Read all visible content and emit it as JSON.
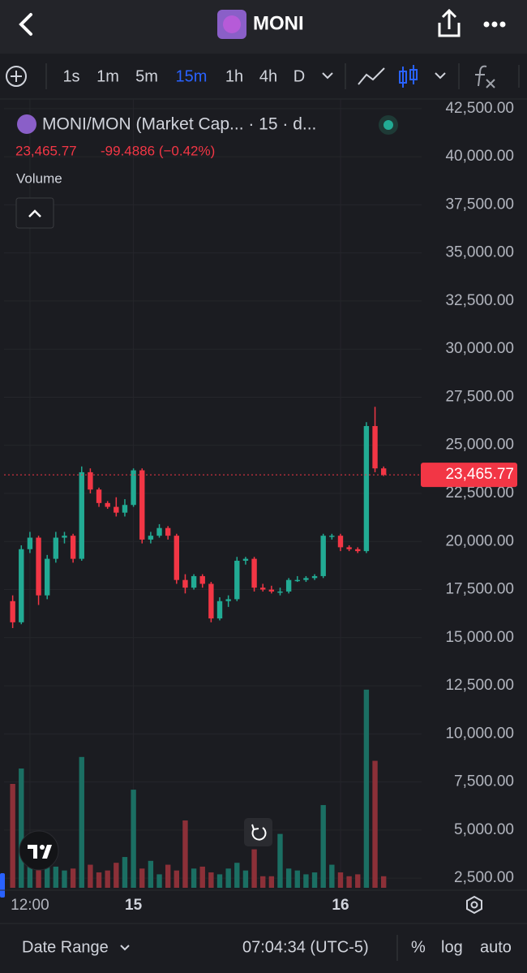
{
  "header": {
    "title": "MONI"
  },
  "toolbar": {
    "intervals": [
      "1s",
      "1m",
      "5m",
      "15m",
      "1h",
      "4h",
      "D"
    ],
    "active_interval": 3
  },
  "legend": {
    "symbol": "MONI/MON (Market Cap... · 15 · d...",
    "change": "-99.4886 (−0.42%)",
    "volume_label": "Volume"
  },
  "chart_data": {
    "type": "candlestick",
    "x": [
      10,
      11,
      12,
      13,
      14,
      15,
      16,
      17,
      18,
      19,
      20,
      21,
      22,
      23,
      24,
      25,
      26,
      27,
      28,
      29,
      30,
      31,
      32,
      33,
      34,
      35,
      36,
      37,
      38,
      39,
      40,
      41,
      42,
      43,
      44,
      45,
      46,
      47,
      48,
      49,
      50,
      51,
      52,
      53
    ],
    "open": [
      16900,
      15800,
      19600,
      20200,
      17200,
      19100,
      20200,
      20300,
      19100,
      23600,
      22700,
      22000,
      21800,
      21500,
      21900,
      23700,
      20100,
      20300,
      20700,
      20300,
      18000,
      17600,
      18200,
      17800,
      16000,
      16900,
      17000,
      19000,
      19100,
      17600,
      17500,
      17400,
      17400,
      18000,
      18000,
      18100,
      18200,
      20300,
      20300,
      19700,
      19600,
      19500,
      26000,
      23800
    ],
    "high": [
      17200,
      19800,
      20500,
      20300,
      19300,
      20500,
      20500,
      20400,
      23900,
      23800,
      22800,
      22100,
      22300,
      22200,
      23800,
      23800,
      20500,
      20900,
      20800,
      20400,
      18300,
      18300,
      18300,
      17900,
      17100,
      17200,
      19200,
      19200,
      19200,
      17800,
      17700,
      17600,
      18100,
      18200,
      18200,
      18300,
      20400,
      20400,
      20400,
      19800,
      19700,
      26200,
      27000,
      23900
    ],
    "low": [
      15500,
      15700,
      19400,
      16700,
      17000,
      18900,
      19900,
      18900,
      19000,
      22500,
      21800,
      21700,
      21300,
      21300,
      21800,
      19900,
      19900,
      20200,
      20100,
      17800,
      17300,
      17500,
      17600,
      15800,
      15900,
      16600,
      16900,
      18800,
      17400,
      17400,
      17300,
      17200,
      17300,
      17900,
      17900,
      18000,
      18100,
      20100,
      19500,
      19500,
      19400,
      19400,
      23600,
      23400
    ],
    "close": [
      15800,
      19600,
      20200,
      17200,
      19100,
      20200,
      20300,
      19100,
      23600,
      22700,
      22000,
      21800,
      21500,
      21900,
      23700,
      20100,
      20300,
      20700,
      20300,
      18000,
      17600,
      18200,
      17800,
      16000,
      16900,
      17000,
      19000,
      19100,
      17600,
      17500,
      17400,
      17400,
      18000,
      18000,
      18100,
      18200,
      20300,
      20300,
      19700,
      19600,
      19500,
      26000,
      23800,
      23465.77
    ],
    "volume": [
      7400,
      8200,
      3400,
      4800,
      3600,
      3100,
      2900,
      3000,
      8800,
      3200,
      2800,
      2900,
      3300,
      3600,
      7100,
      3000,
      3400,
      2700,
      3200,
      2900,
      5500,
      3000,
      3100,
      2800,
      2700,
      3000,
      3300,
      2900,
      4000,
      2600,
      2600,
      4800,
      3000,
      2900,
      2700,
      2800,
      6300,
      3200,
      2800,
      2600,
      2700,
      12300,
      8600,
      2600
    ],
    "up_color": "#22ab94",
    "down_color": "#f23645",
    "volume_up_color": "#1b6f63",
    "volume_down_color": "#8c3038",
    "ylim": [
      2000,
      43000
    ],
    "yticks": [
      {
        "value": 2500,
        "label": "2,500.00"
      },
      {
        "value": 5000,
        "label": "5,000.00"
      },
      {
        "value": 7500,
        "label": "7,500.00"
      },
      {
        "value": 10000,
        "label": "10,000.00"
      },
      {
        "value": 12500,
        "label": "12,500.00"
      },
      {
        "value": 15000,
        "label": "15,000.00"
      },
      {
        "value": 17500,
        "label": "17,500.00"
      },
      {
        "value": 20000,
        "label": "20,000.00"
      },
      {
        "value": 22500,
        "label": "22,500.00"
      },
      {
        "value": 25000,
        "label": "25,000.00"
      },
      {
        "value": 27500,
        "label": "27,500.00"
      },
      {
        "value": 30000,
        "label": "30,000.00"
      },
      {
        "value": 32500,
        "label": "32,500.00"
      },
      {
        "value": 35000,
        "label": "35,000.00"
      },
      {
        "value": 37500,
        "label": "37,500.00"
      },
      {
        "value": 40000,
        "label": "40,000.00"
      },
      {
        "value": 42500,
        "label": "42,500.00"
      }
    ],
    "xlim": [
      9,
      57.4
    ],
    "xticks": [
      {
        "value": 12,
        "label": "12:00"
      },
      {
        "value": 24,
        "label": "15"
      },
      {
        "value": 48,
        "label": "16"
      }
    ],
    "grid": true,
    "last_price": {
      "value": 23465.77,
      "label": "23,465.77"
    }
  },
  "footer": {
    "date_range": "Date Range",
    "time": "07:04:34 (UTC-5)",
    "percent": "%",
    "log": "log",
    "auto": "auto"
  }
}
